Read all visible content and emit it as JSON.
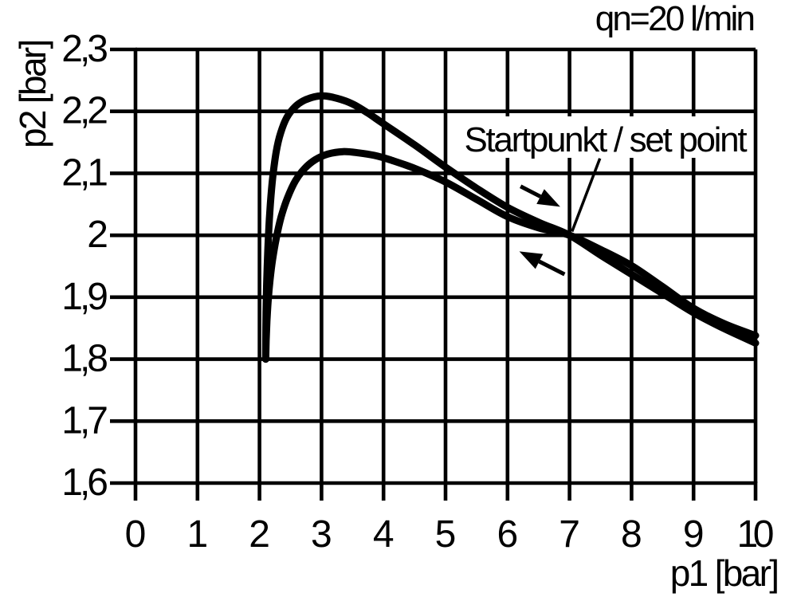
{
  "chart_data": {
    "type": "line",
    "title": "",
    "flow_label": "qn=20 l/min",
    "xlabel": "p1 [bar]",
    "ylabel": "p2 [bar]",
    "xlim": [
      0,
      10
    ],
    "ylim": [
      1.6,
      2.3
    ],
    "grid": true,
    "x_ticks": {
      "values": [
        0,
        1,
        2,
        3,
        4,
        5,
        6,
        7,
        8,
        9,
        10
      ],
      "labels": [
        "0",
        "1",
        "2",
        "3",
        "4",
        "5",
        "6",
        "7",
        "8",
        "9",
        "10"
      ]
    },
    "y_ticks": {
      "values": [
        2.3,
        2.2,
        2.1,
        2.0,
        1.9,
        1.8,
        1.7,
        1.6
      ],
      "labels": [
        "2,3",
        "2,2",
        "2,1",
        "2",
        "1,9",
        "1,8",
        "1,7",
        "1,6"
      ]
    },
    "series": [
      {
        "name": "upper-hysteresis-branch",
        "direction": "forward",
        "points": [
          [
            2.1,
            1.8
          ],
          [
            2.103,
            1.85
          ],
          [
            2.11,
            1.9
          ],
          [
            2.125,
            1.95
          ],
          [
            2.145,
            2.0
          ],
          [
            2.175,
            2.05
          ],
          [
            2.215,
            2.095
          ],
          [
            2.27,
            2.135
          ],
          [
            2.34,
            2.165
          ],
          [
            2.44,
            2.19
          ],
          [
            2.58,
            2.208
          ],
          [
            2.75,
            2.219
          ],
          [
            3.0,
            2.225
          ],
          [
            3.25,
            2.221
          ],
          [
            3.5,
            2.212
          ],
          [
            3.75,
            2.197
          ],
          [
            4.0,
            2.18
          ],
          [
            4.5,
            2.146
          ],
          [
            5.0,
            2.11
          ],
          [
            5.5,
            2.076
          ],
          [
            6.0,
            2.045
          ],
          [
            6.5,
            2.021
          ],
          [
            7.0,
            2.0
          ],
          [
            7.5,
            1.968
          ],
          [
            8.0,
            1.937
          ],
          [
            8.5,
            1.906
          ],
          [
            9.0,
            1.875
          ],
          [
            9.5,
            1.849
          ],
          [
            10.0,
            1.826
          ]
        ]
      },
      {
        "name": "lower-hysteresis-branch",
        "direction": "return",
        "points": [
          [
            2.1,
            1.8
          ],
          [
            2.107,
            1.83
          ],
          [
            2.12,
            1.862
          ],
          [
            2.14,
            1.895
          ],
          [
            2.17,
            1.928
          ],
          [
            2.21,
            1.96
          ],
          [
            2.27,
            1.995
          ],
          [
            2.35,
            2.03
          ],
          [
            2.45,
            2.06
          ],
          [
            2.58,
            2.088
          ],
          [
            2.73,
            2.108
          ],
          [
            2.9,
            2.122
          ],
          [
            3.1,
            2.131
          ],
          [
            3.35,
            2.135
          ],
          [
            3.6,
            2.133
          ],
          [
            3.85,
            2.129
          ],
          [
            4.1,
            2.122
          ],
          [
            4.5,
            2.108
          ],
          [
            5.0,
            2.086
          ],
          [
            5.5,
            2.058
          ],
          [
            6.0,
            2.03
          ],
          [
            6.5,
            2.012
          ],
          [
            7.0,
            2.0
          ],
          [
            7.5,
            1.977
          ],
          [
            8.0,
            1.951
          ],
          [
            8.5,
            1.917
          ],
          [
            9.0,
            1.882
          ],
          [
            9.5,
            1.857
          ],
          [
            10.0,
            1.838
          ]
        ]
      }
    ],
    "annotation": {
      "text": "Startpunkt / set point",
      "points_to": [
        7.04,
        2.006
      ],
      "callout_from": [
        7.49,
        2.124
      ]
    },
    "arrows": [
      {
        "name": "forward-direction-arrow",
        "from": [
          6.21,
          2.079
        ],
        "to": [
          6.85,
          2.046
        ]
      },
      {
        "name": "return-direction-arrow",
        "from": [
          6.92,
          1.937
        ],
        "to": [
          6.19,
          1.974
        ]
      }
    ],
    "colors": {
      "foreground": "#000000",
      "background": "#ffffff"
    }
  }
}
